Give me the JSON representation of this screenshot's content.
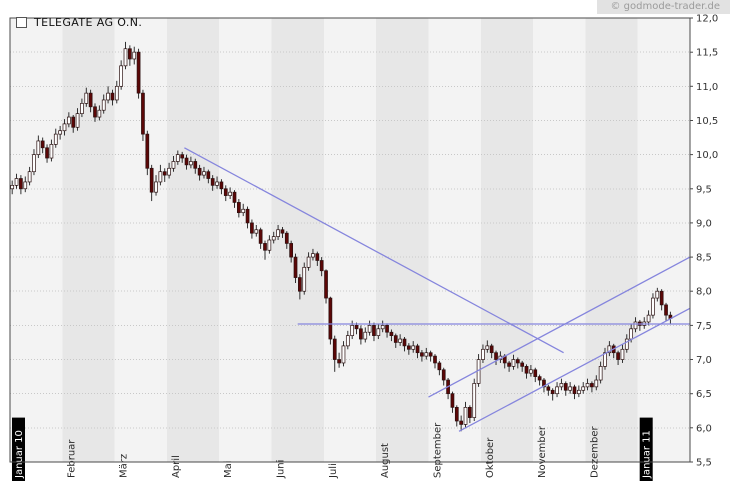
{
  "header": {
    "title": "TELEGATE AG O.N.",
    "watermark": "© godmode-trader.de"
  },
  "chart_data": {
    "type": "candlestick",
    "title": "TELEGATE AG O.N.",
    "ohlc_order": "open,high,low,close",
    "y_axis": {
      "side": "right",
      "min": 5.5,
      "max": 12.0,
      "step": 0.5,
      "labels": [
        "12,0",
        "11,5",
        "11,0",
        "10,5",
        "10,0",
        "9,5",
        "9,0",
        "8,5",
        "8,0",
        "7,5",
        "7,0",
        "6,5",
        "6,0",
        "5,5"
      ]
    },
    "x_axis": {
      "months": [
        {
          "label": "Januar 10",
          "highlight": true
        },
        {
          "label": "Februar",
          "highlight": false
        },
        {
          "label": "März",
          "highlight": false
        },
        {
          "label": "April",
          "highlight": false
        },
        {
          "label": "Mai",
          "highlight": false
        },
        {
          "label": "Juni",
          "highlight": false
        },
        {
          "label": "Juli",
          "highlight": false
        },
        {
          "label": "August",
          "highlight": false
        },
        {
          "label": "September",
          "highlight": false
        },
        {
          "label": "Oktober",
          "highlight": false
        },
        {
          "label": "November",
          "highlight": false
        },
        {
          "label": "Dezember",
          "highlight": false
        },
        {
          "label": "Januar 11",
          "highlight": true
        }
      ]
    },
    "candles_per_month": 12,
    "candles_ohlc": [
      [
        9.5,
        9.62,
        9.42,
        9.55
      ],
      [
        9.55,
        9.72,
        9.5,
        9.65
      ],
      [
        9.65,
        9.7,
        9.42,
        9.5
      ],
      [
        9.5,
        9.68,
        9.45,
        9.6
      ],
      [
        9.6,
        9.82,
        9.55,
        9.75
      ],
      [
        9.75,
        10.08,
        9.7,
        10.0
      ],
      [
        10.0,
        10.28,
        9.95,
        10.2
      ],
      [
        10.2,
        10.25,
        10.02,
        10.1
      ],
      [
        10.1,
        10.15,
        9.88,
        9.95
      ],
      [
        9.95,
        10.22,
        9.9,
        10.15
      ],
      [
        10.15,
        10.38,
        10.1,
        10.3
      ],
      [
        10.3,
        10.42,
        10.22,
        10.35
      ],
      [
        10.35,
        10.52,
        10.28,
        10.45
      ],
      [
        10.45,
        10.62,
        10.4,
        10.55
      ],
      [
        10.55,
        10.58,
        10.32,
        10.4
      ],
      [
        10.4,
        10.68,
        10.35,
        10.6
      ],
      [
        10.6,
        10.82,
        10.55,
        10.75
      ],
      [
        10.75,
        10.98,
        10.7,
        10.9
      ],
      [
        10.9,
        10.95,
        10.62,
        10.7
      ],
      [
        10.7,
        10.75,
        10.48,
        10.55
      ],
      [
        10.55,
        10.72,
        10.5,
        10.65
      ],
      [
        10.65,
        10.88,
        10.6,
        10.8
      ],
      [
        10.8,
        11.0,
        10.75,
        10.9
      ],
      [
        10.9,
        10.95,
        10.72,
        10.8
      ],
      [
        10.8,
        11.08,
        10.75,
        11.0
      ],
      [
        11.0,
        11.38,
        10.95,
        11.3
      ],
      [
        11.3,
        11.65,
        11.25,
        11.55
      ],
      [
        11.55,
        11.6,
        11.3,
        11.4
      ],
      [
        11.4,
        11.58,
        11.32,
        11.5
      ],
      [
        11.5,
        11.55,
        10.82,
        10.9
      ],
      [
        10.9,
        10.95,
        10.2,
        10.3
      ],
      [
        10.3,
        10.35,
        9.7,
        9.8
      ],
      [
        9.8,
        9.85,
        9.32,
        9.45
      ],
      [
        9.45,
        9.7,
        9.4,
        9.6
      ],
      [
        9.6,
        9.85,
        9.55,
        9.75
      ],
      [
        9.75,
        9.8,
        9.6,
        9.7
      ],
      [
        9.7,
        9.88,
        9.65,
        9.8
      ],
      [
        9.8,
        9.98,
        9.75,
        9.9
      ],
      [
        9.9,
        10.06,
        9.85,
        10.0
      ],
      [
        10.0,
        10.04,
        9.88,
        9.95
      ],
      [
        9.95,
        10.0,
        9.78,
        9.85
      ],
      [
        9.85,
        9.97,
        9.8,
        9.9
      ],
      [
        9.9,
        9.94,
        9.72,
        9.8
      ],
      [
        9.8,
        9.85,
        9.62,
        9.7
      ],
      [
        9.7,
        9.82,
        9.65,
        9.75
      ],
      [
        9.75,
        9.78,
        9.58,
        9.65
      ],
      [
        9.65,
        9.7,
        9.47,
        9.55
      ],
      [
        9.55,
        9.68,
        9.5,
        9.6
      ],
      [
        9.6,
        9.64,
        9.42,
        9.5
      ],
      [
        9.5,
        9.55,
        9.32,
        9.4
      ],
      [
        9.4,
        9.52,
        9.35,
        9.45
      ],
      [
        9.45,
        9.48,
        9.22,
        9.3
      ],
      [
        9.3,
        9.35,
        9.08,
        9.15
      ],
      [
        9.15,
        9.28,
        9.1,
        9.2
      ],
      [
        9.2,
        9.24,
        8.92,
        9.0
      ],
      [
        9.0,
        9.05,
        8.77,
        8.85
      ],
      [
        8.85,
        8.97,
        8.8,
        8.9
      ],
      [
        8.9,
        8.93,
        8.62,
        8.7
      ],
      [
        8.7,
        8.74,
        8.46,
        8.6
      ],
      [
        8.6,
        8.82,
        8.55,
        8.75
      ],
      [
        8.75,
        8.87,
        8.7,
        8.8
      ],
      [
        8.8,
        8.97,
        8.75,
        8.9
      ],
      [
        8.9,
        8.94,
        8.78,
        8.85
      ],
      [
        8.85,
        8.88,
        8.62,
        8.7
      ],
      [
        8.7,
        8.74,
        8.42,
        8.5
      ],
      [
        8.5,
        8.55,
        8.12,
        8.2
      ],
      [
        8.2,
        8.25,
        7.88,
        8.0
      ],
      [
        8.0,
        8.42,
        7.95,
        8.35
      ],
      [
        8.35,
        8.57,
        8.3,
        8.5
      ],
      [
        8.5,
        8.62,
        8.45,
        8.55
      ],
      [
        8.55,
        8.58,
        8.37,
        8.45
      ],
      [
        8.45,
        8.5,
        8.22,
        8.3
      ],
      [
        8.3,
        8.32,
        7.82,
        7.9
      ],
      [
        7.9,
        7.92,
        7.22,
        7.3
      ],
      [
        7.3,
        7.35,
        6.82,
        7.0
      ],
      [
        7.0,
        7.1,
        6.88,
        6.95
      ],
      [
        6.95,
        7.27,
        6.9,
        7.2
      ],
      [
        7.2,
        7.42,
        7.15,
        7.35
      ],
      [
        7.35,
        7.57,
        7.3,
        7.5
      ],
      [
        7.5,
        7.54,
        7.37,
        7.45
      ],
      [
        7.45,
        7.5,
        7.22,
        7.3
      ],
      [
        7.3,
        7.47,
        7.25,
        7.4
      ],
      [
        7.4,
        7.57,
        7.35,
        7.5
      ],
      [
        7.5,
        7.54,
        7.27,
        7.35
      ],
      [
        7.35,
        7.52,
        7.3,
        7.45
      ],
      [
        7.45,
        7.57,
        7.4,
        7.5
      ],
      [
        7.5,
        7.53,
        7.32,
        7.4
      ],
      [
        7.4,
        7.44,
        7.27,
        7.35
      ],
      [
        7.35,
        7.38,
        7.17,
        7.25
      ],
      [
        7.25,
        7.37,
        7.2,
        7.3
      ],
      [
        7.3,
        7.33,
        7.12,
        7.2
      ],
      [
        7.2,
        7.24,
        7.07,
        7.15
      ],
      [
        7.15,
        7.27,
        7.1,
        7.2
      ],
      [
        7.2,
        7.23,
        7.02,
        7.1
      ],
      [
        7.1,
        7.14,
        6.97,
        7.05
      ],
      [
        7.05,
        7.17,
        7.0,
        7.1
      ],
      [
        7.1,
        7.13,
        6.97,
        7.05
      ],
      [
        7.05,
        7.08,
        6.87,
        6.95
      ],
      [
        6.95,
        6.98,
        6.77,
        6.85
      ],
      [
        6.85,
        6.88,
        6.62,
        6.7
      ],
      [
        6.7,
        6.73,
        6.42,
        6.5
      ],
      [
        6.5,
        6.53,
        6.22,
        6.3
      ],
      [
        6.3,
        6.33,
        6.02,
        6.1
      ],
      [
        6.1,
        6.18,
        5.95,
        6.05
      ],
      [
        6.05,
        6.38,
        6.0,
        6.3
      ],
      [
        6.3,
        6.33,
        6.07,
        6.15
      ],
      [
        6.15,
        6.72,
        6.1,
        6.65
      ],
      [
        6.65,
        7.08,
        6.6,
        7.0
      ],
      [
        7.0,
        7.22,
        6.95,
        7.15
      ],
      [
        7.15,
        7.28,
        7.1,
        7.2
      ],
      [
        7.2,
        7.23,
        7.02,
        7.1
      ],
      [
        7.1,
        7.13,
        6.92,
        7.0
      ],
      [
        7.0,
        7.12,
        6.95,
        7.05
      ],
      [
        7.05,
        7.08,
        6.87,
        6.95
      ],
      [
        6.95,
        6.98,
        6.82,
        6.9
      ],
      [
        6.9,
        7.07,
        6.85,
        7.0
      ],
      [
        7.0,
        7.03,
        6.87,
        6.95
      ],
      [
        6.95,
        6.98,
        6.82,
        6.9
      ],
      [
        6.9,
        6.93,
        6.72,
        6.8
      ],
      [
        6.8,
        6.92,
        6.75,
        6.85
      ],
      [
        6.85,
        6.88,
        6.67,
        6.75
      ],
      [
        6.75,
        6.78,
        6.62,
        6.7
      ],
      [
        6.7,
        6.73,
        6.52,
        6.6
      ],
      [
        6.6,
        6.63,
        6.47,
        6.55
      ],
      [
        6.55,
        6.58,
        6.4,
        6.5
      ],
      [
        6.5,
        6.67,
        6.45,
        6.6
      ],
      [
        6.6,
        6.72,
        6.55,
        6.65
      ],
      [
        6.65,
        6.68,
        6.47,
        6.55
      ],
      [
        6.55,
        6.67,
        6.5,
        6.6
      ],
      [
        6.6,
        6.63,
        6.42,
        6.5
      ],
      [
        6.5,
        6.62,
        6.45,
        6.55
      ],
      [
        6.55,
        6.67,
        6.5,
        6.6
      ],
      [
        6.6,
        6.72,
        6.55,
        6.65
      ],
      [
        6.65,
        6.68,
        6.52,
        6.6
      ],
      [
        6.6,
        6.77,
        6.55,
        6.7
      ],
      [
        6.7,
        6.97,
        6.65,
        6.9
      ],
      [
        6.9,
        7.17,
        6.85,
        7.1
      ],
      [
        7.1,
        7.27,
        7.05,
        7.2
      ],
      [
        7.2,
        7.23,
        7.02,
        7.1
      ],
      [
        7.1,
        7.13,
        6.92,
        7.0
      ],
      [
        7.0,
        7.22,
        6.95,
        7.15
      ],
      [
        7.15,
        7.37,
        7.1,
        7.3
      ],
      [
        7.3,
        7.52,
        7.25,
        7.45
      ],
      [
        7.45,
        7.62,
        7.4,
        7.55
      ],
      [
        7.55,
        7.58,
        7.42,
        7.5
      ],
      [
        7.5,
        7.62,
        7.45,
        7.55
      ],
      [
        7.55,
        7.72,
        7.5,
        7.65
      ],
      [
        7.65,
        7.97,
        7.6,
        7.9
      ],
      [
        7.9,
        8.05,
        7.85,
        8.0
      ],
      [
        8.0,
        8.03,
        7.72,
        7.8
      ],
      [
        7.8,
        7.83,
        7.57,
        7.65
      ],
      [
        7.65,
        7.7,
        7.52,
        7.6
      ]
    ],
    "trendlines": [
      {
        "name": "descending-resistance-line",
        "from": {
          "i": 40,
          "p": 10.1
        },
        "to": {
          "i": 127,
          "p": 7.1
        }
      },
      {
        "name": "horizontal-resistance-line",
        "from": {
          "i": 66,
          "p": 7.52
        },
        "to": {
          "i": 156,
          "p": 7.52
        }
      },
      {
        "name": "ascending-channel-upper-line",
        "from": {
          "i": 96,
          "p": 6.45
        },
        "to": {
          "i": 156,
          "p": 8.5
        }
      },
      {
        "name": "ascending-channel-lower-line",
        "from": {
          "i": 103,
          "p": 5.95
        },
        "to": {
          "i": 156,
          "p": 7.75
        }
      }
    ],
    "colors": {
      "up_body": "#ffffff",
      "down_body": "#5c0707",
      "body_stroke": "#2a1010",
      "wick": "#1c1c1c",
      "trend": "#8585dd",
      "band_light": "#f3f3f3",
      "band_dark": "#e7e7e7",
      "grid": "#c8c8c8",
      "frame": "#4a4a4a",
      "axis_text": "#333333",
      "month_text": "#2b2b2b",
      "badge_bg": "#000000",
      "badge_text": "#ffffff"
    },
    "legend_position": "top-left",
    "grid": true
  }
}
